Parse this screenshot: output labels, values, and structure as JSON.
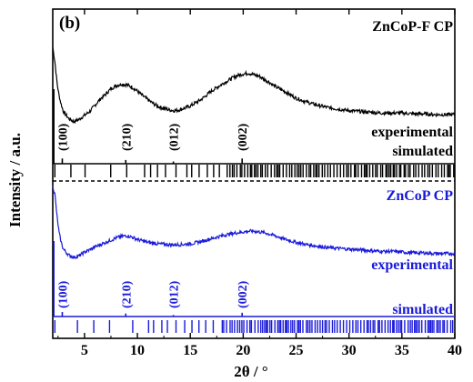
{
  "chart_data": {
    "type": "line",
    "panel_label": "(b)",
    "xlabel": "2θ / °",
    "ylabel": "Intensity / a.u.",
    "xlim": [
      2,
      40
    ],
    "x_ticks": [
      "5",
      "10",
      "15",
      "20",
      "25",
      "30",
      "35",
      "40"
    ],
    "colors": {
      "top": "#000000",
      "bottom": "#1a1adb"
    },
    "panels": [
      {
        "name": "ZnCoP-F CP",
        "color": "#000000",
        "series": [
          {
            "name": "experimental",
            "x": [
              2.0,
              2.2,
              2.4,
              2.6,
              2.8,
              3.0,
              3.5,
              4.0,
              4.5,
              5.0,
              5.5,
              6.0,
              6.5,
              7.0,
              7.5,
              8.0,
              8.5,
              9.0,
              9.5,
              10.0,
              10.5,
              11.0,
              11.5,
              12.0,
              12.5,
              13.0,
              13.5,
              14.0,
              15.0,
              16.0,
              17.0,
              18.0,
              19.0,
              19.5,
              20.0,
              20.5,
              21.0,
              21.5,
              22.0,
              22.5,
              23.0,
              24.0,
              25.0,
              26.0,
              27.0,
              28.0,
              29.0,
              30.0,
              31.0,
              32.0,
              33.0,
              34.0,
              35.0,
              36.0,
              37.0,
              38.0,
              39.0,
              40.0
            ],
            "y": [
              1.0,
              0.82,
              0.55,
              0.38,
              0.27,
              0.18,
              0.09,
              0.05,
              0.08,
              0.13,
              0.18,
              0.26,
              0.34,
              0.4,
              0.47,
              0.51,
              0.53,
              0.52,
              0.49,
              0.44,
              0.38,
              0.33,
              0.28,
              0.24,
              0.22,
              0.2,
              0.19,
              0.2,
              0.25,
              0.33,
              0.44,
              0.53,
              0.61,
              0.64,
              0.66,
              0.67,
              0.65,
              0.63,
              0.59,
              0.55,
              0.5,
              0.43,
              0.35,
              0.3,
              0.26,
              0.23,
              0.21,
              0.19,
              0.18,
              0.17,
              0.16,
              0.16,
              0.16,
              0.15,
              0.15,
              0.14,
              0.14,
              0.14
            ]
          },
          {
            "name": "simulated",
            "peaks": [
              {
                "x": 2.1,
                "h": 1.0,
                "label": ""
              },
              {
                "x": 2.9,
                "h": 0.07,
                "label": "(100)"
              },
              {
                "x": 8.9,
                "h": 0.05,
                "label": "(210)"
              },
              {
                "x": 13.4,
                "h": 0.03,
                "label": "(012)"
              },
              {
                "x": 19.9,
                "h": 0.07,
                "label": "(002)"
              }
            ]
          }
        ]
      },
      {
        "name": "ZnCoP CP",
        "color": "#1a1adb",
        "series": [
          {
            "name": "experimental",
            "x": [
              2.0,
              2.2,
              2.4,
              2.6,
              2.8,
              3.0,
              3.5,
              4.0,
              4.5,
              5.0,
              5.5,
              6.0,
              6.5,
              7.0,
              7.5,
              8.0,
              8.5,
              9.0,
              9.5,
              10.0,
              10.5,
              11.0,
              11.5,
              12.0,
              13.0,
              14.0,
              15.0,
              16.0,
              17.0,
              18.0,
              19.0,
              20.0,
              20.5,
              21.0,
              21.5,
              22.0,
              23.0,
              24.0,
              25.0,
              26.0,
              27.0,
              28.0,
              29.0,
              30.0,
              31.0,
              32.0,
              33.0,
              34.0,
              35.0,
              36.0,
              37.0,
              38.0,
              39.0,
              40.0
            ],
            "y": [
              1.0,
              0.9,
              0.6,
              0.38,
              0.25,
              0.16,
              0.08,
              0.05,
              0.07,
              0.12,
              0.15,
              0.19,
              0.22,
              0.25,
              0.28,
              0.31,
              0.33,
              0.34,
              0.32,
              0.29,
              0.27,
              0.25,
              0.24,
              0.23,
              0.22,
              0.22,
              0.23,
              0.26,
              0.3,
              0.34,
              0.37,
              0.39,
              0.4,
              0.4,
              0.39,
              0.38,
              0.34,
              0.29,
              0.25,
              0.22,
              0.2,
              0.18,
              0.17,
              0.16,
              0.15,
              0.14,
              0.13,
              0.13,
              0.12,
              0.11,
              0.11,
              0.1,
              0.1,
              0.1
            ]
          },
          {
            "name": "simulated",
            "peaks": [
              {
                "x": 2.1,
                "h": 1.0,
                "label": ""
              },
              {
                "x": 2.9,
                "h": 0.06,
                "label": "(100)"
              },
              {
                "x": 8.9,
                "h": 0.04,
                "label": "(210)"
              },
              {
                "x": 13.4,
                "h": 0.02,
                "label": "(012)"
              },
              {
                "x": 19.9,
                "h": 0.05,
                "label": "(002)"
              }
            ]
          }
        ]
      }
    ]
  }
}
